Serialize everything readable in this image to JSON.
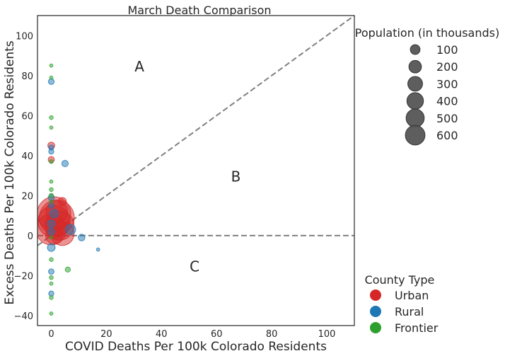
{
  "chart_data": {
    "type": "scatter",
    "title": "March Death Comparison",
    "xlabel": "COVID Deaths Per 100k Colorado Residents",
    "ylabel": "Excess Deaths Per 100k Colorado Residents",
    "xlim": [
      -5,
      110
    ],
    "ylim": [
      -45,
      110
    ],
    "xticks": [
      0,
      20,
      40,
      60,
      80,
      100
    ],
    "yticks": [
      -40,
      -20,
      0,
      20,
      40,
      60,
      80,
      100
    ],
    "grid": false,
    "reference_lines": [
      {
        "kind": "diagonal",
        "style": "dashed",
        "color": "#808080",
        "description": "y = x"
      },
      {
        "kind": "horizontal",
        "y": 0,
        "style": "dashed",
        "color": "#808080"
      }
    ],
    "region_labels": [
      {
        "text": "A",
        "x": 32,
        "y": 82
      },
      {
        "text": "B",
        "x": 67,
        "y": 27
      },
      {
        "text": "C",
        "x": 52,
        "y": -18
      }
    ],
    "size_legend": {
      "title": "Population (in thousands)",
      "values": [
        100,
        200,
        300,
        400,
        500,
        600
      ],
      "labels": [
        "100",
        "200",
        "300",
        "400",
        "500",
        "600"
      ],
      "color": "#555555"
    },
    "type_legend": {
      "title": "County Type",
      "entries": [
        {
          "label": "Urban",
          "color": "#d62728"
        },
        {
          "label": "Rural",
          "color": "#1f77b4"
        },
        {
          "label": "Frontier",
          "color": "#2ca02c"
        }
      ]
    },
    "series": [
      {
        "name": "Urban",
        "color": "#d62728",
        "points": [
          {
            "x": 0,
            "y": 45,
            "pop": 25
          },
          {
            "x": 0,
            "y": 38,
            "pop": 20
          },
          {
            "x": 4,
            "y": 17,
            "pop": 35
          },
          {
            "x": 1,
            "y": 11,
            "pop": 600
          },
          {
            "x": 2,
            "y": 9,
            "pop": 650
          },
          {
            "x": 1,
            "y": 7,
            "pop": 550
          },
          {
            "x": 3,
            "y": 5,
            "pop": 450
          },
          {
            "x": 0,
            "y": 3,
            "pop": 500
          },
          {
            "x": 4,
            "y": 1,
            "pop": 300
          },
          {
            "x": 1,
            "y": 0,
            "pop": 150
          },
          {
            "x": 2,
            "y": 12,
            "pop": 250
          }
        ]
      },
      {
        "name": "Rural",
        "color": "#1f77b4",
        "points": [
          {
            "x": 0,
            "y": 77,
            "pop": 18
          },
          {
            "x": 0,
            "y": 44,
            "pop": 14
          },
          {
            "x": 0,
            "y": 42,
            "pop": 14
          },
          {
            "x": 5,
            "y": 36,
            "pop": 22
          },
          {
            "x": 0,
            "y": 19,
            "pop": 20
          },
          {
            "x": 0,
            "y": 15,
            "pop": 16
          },
          {
            "x": 1,
            "y": 11,
            "pop": 40
          },
          {
            "x": 0,
            "y": 6,
            "pop": 30
          },
          {
            "x": 7,
            "y": 3,
            "pop": 55
          },
          {
            "x": 0,
            "y": 2,
            "pop": 26
          },
          {
            "x": 11,
            "y": -1,
            "pop": 24
          },
          {
            "x": 17,
            "y": -7,
            "pop": 6
          },
          {
            "x": 0,
            "y": -6,
            "pop": 32
          },
          {
            "x": 0,
            "y": -18,
            "pop": 16
          },
          {
            "x": 0,
            "y": -29,
            "pop": 14
          }
        ]
      },
      {
        "name": "Frontier",
        "color": "#2ca02c",
        "points": [
          {
            "x": 0,
            "y": 85,
            "pop": 6
          },
          {
            "x": 0,
            "y": 79,
            "pop": 6
          },
          {
            "x": 0,
            "y": 59,
            "pop": 8
          },
          {
            "x": 0,
            "y": 54,
            "pop": 6
          },
          {
            "x": 0,
            "y": 37,
            "pop": 8
          },
          {
            "x": 0,
            "y": 27,
            "pop": 6
          },
          {
            "x": 0,
            "y": 23,
            "pop": 8
          },
          {
            "x": 0,
            "y": 20,
            "pop": 10
          },
          {
            "x": 0,
            "y": 17,
            "pop": 6
          },
          {
            "x": 0,
            "y": -1,
            "pop": 6
          },
          {
            "x": 0,
            "y": -12,
            "pop": 8
          },
          {
            "x": 6,
            "y": -17,
            "pop": 14
          },
          {
            "x": 0,
            "y": -21,
            "pop": 8
          },
          {
            "x": 0,
            "y": -24,
            "pop": 6
          },
          {
            "x": 0,
            "y": -31,
            "pop": 8
          },
          {
            "x": 0,
            "y": -39,
            "pop": 6
          }
        ]
      }
    ]
  }
}
